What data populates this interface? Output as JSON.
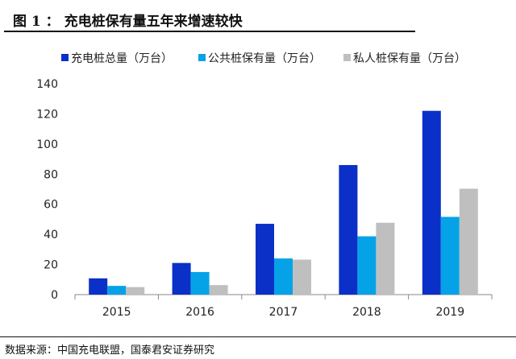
{
  "header": {
    "title": "图 1 ： 充电桩保有量五年来增速较快"
  },
  "footer": {
    "source": "数据来源：中国充电联盟，国泰君安证券研究"
  },
  "chart_data": {
    "type": "bar",
    "title": "",
    "categories": [
      "2015",
      "2016",
      "2017",
      "2018",
      "2019"
    ],
    "series": [
      {
        "name": "充电桩总量（万台）",
        "color": "#0a30c8",
        "values": [
          10.8,
          21,
          47,
          86,
          122
        ]
      },
      {
        "name": "公共桩保有量（万台）",
        "color": "#06a2e8",
        "values": [
          5.8,
          15,
          24,
          38.7,
          51.6
        ]
      },
      {
        "name": "私人桩保有量（万台）",
        "color": "#bfbfbf",
        "values": [
          5,
          6.3,
          23.2,
          47.7,
          70.3
        ]
      }
    ],
    "ylim": [
      0,
      140
    ],
    "yticks": [
      "0",
      "20",
      "40",
      "60",
      "80",
      "100",
      "120",
      "140"
    ],
    "grid": false,
    "legend": "top"
  }
}
